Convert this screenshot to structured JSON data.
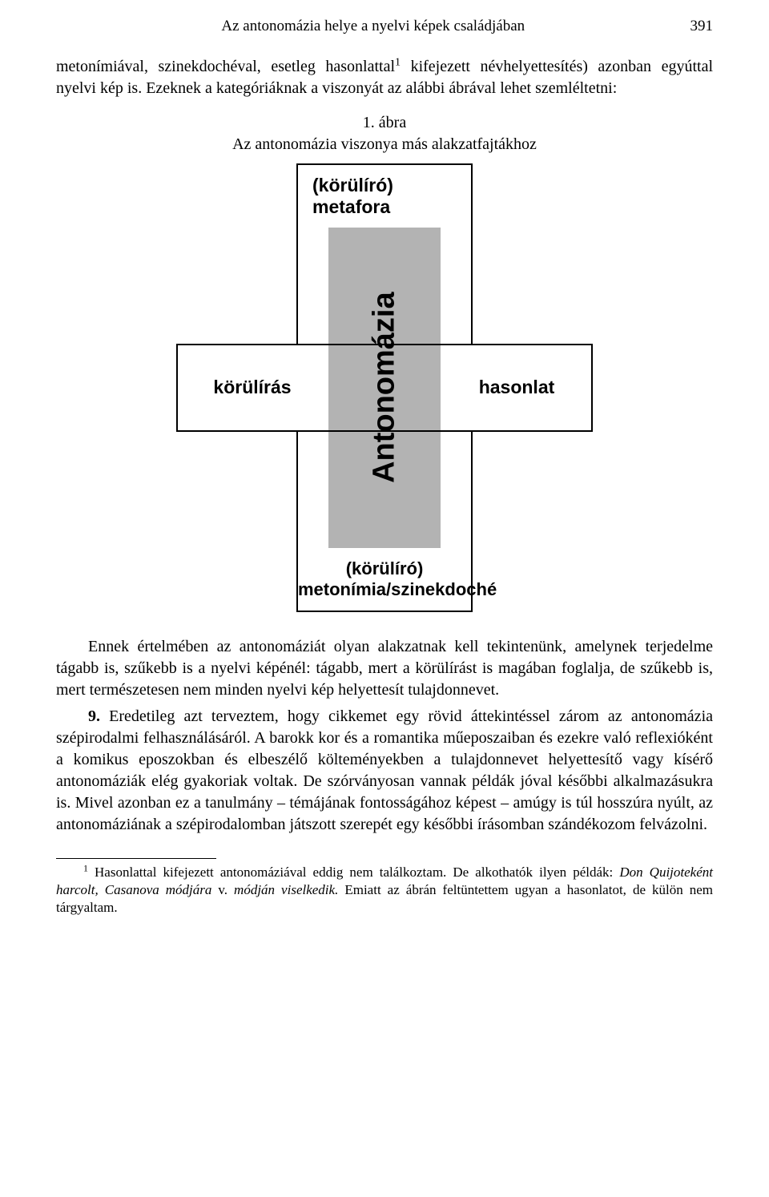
{
  "header": {
    "running_title": "Az antonomázia helye a nyelvi képek családjában",
    "page_number": "391"
  },
  "para1": {
    "text_before_sup": "metonímiával, szinekdochéval, esetleg hasonlattal",
    "sup": "1",
    "text_after_sup": " kifejezett névhelyettesítés) azonban egyúttal nyelvi kép is. Ezeknek a kategóriáknak a viszonyát az alábbi ábrával lehet szemléltetni:"
  },
  "figure": {
    "caption_line1": "1. ábra",
    "caption_line2": "Az antonomázia viszonya más alakzatfajtákhoz",
    "diagram": {
      "top_label_line1": "(körülíró)",
      "top_label_line2": "metafora",
      "left_label": "körülírás",
      "center_label": "Antonomázia",
      "right_label": "hasonlat",
      "bottom_label_line1": "(körülíró)",
      "bottom_label_line2": "metonímia/szinekdoché",
      "colors": {
        "core_fill": "#b3b3b3",
        "border": "#000000",
        "background": "#ffffff"
      }
    }
  },
  "para2": "Ennek értelmében az antonomáziát olyan alakzatnak kell tekintenünk, amelynek terjedelme tágabb is, szűkebb is a nyelvi képénél: tágabb, mert a körülírást is magában foglalja, de szűkebb is, mert természetesen nem minden nyelvi kép helyettesít tulajdonnevet.",
  "para3": {
    "num": "9.",
    "text": " Eredetileg azt terveztem, hogy cikkemet egy rövid áttekintéssel zárom az antonomázia szépirodalmi felhasználásáról. A barokk kor és a romantika műeposzaiban és ezekre való reflexióként a komikus eposzokban és elbeszélő költeményekben a tulajdonnevet helyettesítő vagy kísérő antonomáziák elég gyakoriak voltak. De szórványosan vannak példák jóval későbbi alkalmazásukra is. Mivel azonban ez a tanulmány – témájának fontosságához képest – amúgy is túl hosszúra nyúlt, az antonomáziának a szépirodalomban játszott szerepét egy későbbi írásomban szándékozom felvázolni."
  },
  "footnote": {
    "sup": "1",
    "part1": " Hasonlattal kifejezett antonomáziával eddig nem találkoztam. De alkothatók ilyen példák: ",
    "italic1": "Don Quijoteként harcolt, Casanova módjára",
    "mid": " v. ",
    "italic2": "módján viselkedik.",
    "part2": " Emiatt az ábrán feltüntettem ugyan a hasonlatot, de külön nem tárgyaltam."
  }
}
